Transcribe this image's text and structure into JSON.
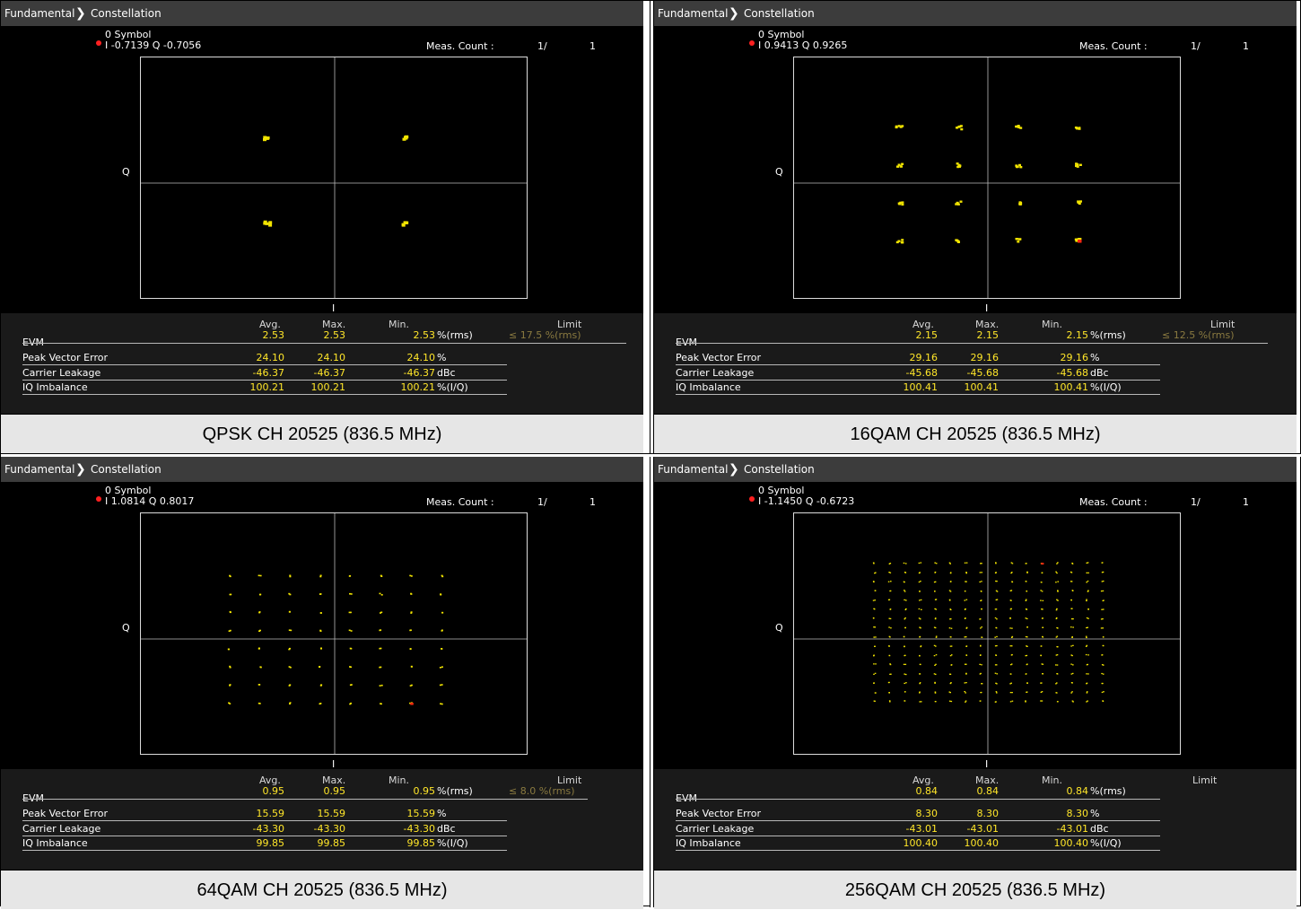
{
  "panels": [
    {
      "breadcrumb": [
        "Fundamental",
        "Constellation"
      ],
      "symbol_label": "0 Symbol",
      "iq_readout": "I -0.7139 Q -0.7056",
      "meas_label": "Meas. Count :",
      "meas_value": "1/",
      "meas_total": "1",
      "axis_q": "Q",
      "axis_i": "I",
      "columns": [
        "Avg.",
        "Max.",
        "Min.",
        "Limit"
      ],
      "rows": [
        {
          "name": "EVM",
          "avg": "2.53",
          "max": "2.53",
          "min": "2.53",
          "unit": "%(rms)",
          "limit": "≤ 17.5 %(rms)"
        },
        {
          "name": "Peak Vector Error",
          "avg": "24.10",
          "max": "24.10",
          "min": "24.10",
          "unit": "%",
          "limit": ""
        },
        {
          "name": "Carrier Leakage",
          "avg": "-46.37",
          "max": "-46.37",
          "min": "-46.37",
          "unit": "dBc",
          "limit": ""
        },
        {
          "name": "IQ Imbalance",
          "avg": "100.21",
          "max": "100.21",
          "min": "100.21",
          "unit": "%(I/Q)",
          "limit": ""
        }
      ],
      "caption": "QPSK CH 20525 (836.5 MHz)",
      "constellation_order": 2,
      "marker_point": [
        -1,
        -1
      ]
    },
    {
      "breadcrumb": [
        "Fundamental",
        "Constellation"
      ],
      "symbol_label": "0 Symbol",
      "iq_readout": "I 0.9413 Q 0.9265",
      "meas_label": "Meas. Count :",
      "meas_value": "1/",
      "meas_total": "1",
      "axis_q": "Q",
      "axis_i": "I",
      "columns": [
        "Avg.",
        "Max.",
        "Min.",
        "Limit"
      ],
      "rows": [
        {
          "name": "EVM",
          "avg": "2.15",
          "max": "2.15",
          "min": "2.15",
          "unit": "%(rms)",
          "limit": "≤ 12.5 %(rms)"
        },
        {
          "name": "Peak Vector Error",
          "avg": "29.16",
          "max": "29.16",
          "min": "29.16",
          "unit": "%",
          "limit": ""
        },
        {
          "name": "Carrier Leakage",
          "avg": "-45.68",
          "max": "-45.68",
          "min": "-45.68",
          "unit": "dBc",
          "limit": ""
        },
        {
          "name": "IQ Imbalance",
          "avg": "100.41",
          "max": "100.41",
          "min": "100.41",
          "unit": "%(I/Q)",
          "limit": ""
        }
      ],
      "caption": "16QAM CH 20525 (836.5 MHz)",
      "constellation_order": 4,
      "marker_point": [
        3,
        3
      ]
    },
    {
      "breadcrumb": [
        "Fundamental",
        "Constellation"
      ],
      "symbol_label": "0 Symbol",
      "iq_readout": "I 1.0814 Q 0.8017",
      "meas_label": "Meas. Count :",
      "meas_value": "1/",
      "meas_total": "1",
      "axis_q": "Q",
      "axis_i": "I",
      "columns": [
        "Avg.",
        "Max.",
        "Min.",
        "Limit"
      ],
      "rows": [
        {
          "name": "EVM",
          "avg": "0.95",
          "max": "0.95",
          "min": "0.95",
          "unit": "%(rms)",
          "limit": "≤ 8.0 %(rms)"
        },
        {
          "name": "Peak Vector Error",
          "avg": "15.59",
          "max": "15.59",
          "min": "15.59",
          "unit": "%",
          "limit": ""
        },
        {
          "name": "Carrier Leakage",
          "avg": "-43.30",
          "max": "-43.30",
          "min": "-43.30",
          "unit": "dBc",
          "limit": ""
        },
        {
          "name": "IQ Imbalance",
          "avg": "99.85",
          "max": "99.85",
          "min": "99.85",
          "unit": "%(I/Q)",
          "limit": ""
        }
      ],
      "caption": "64QAM CH 20525 (836.5 MHz)",
      "constellation_order": 8,
      "marker_point": [
        7,
        6
      ]
    },
    {
      "breadcrumb": [
        "Fundamental",
        "Constellation"
      ],
      "symbol_label": "0 Symbol",
      "iq_readout": "I -1.1450 Q -0.6723",
      "meas_label": "Meas. Count :",
      "meas_value": "1/",
      "meas_total": "1",
      "axis_q": "Q",
      "axis_i": "I",
      "columns": [
        "Avg.",
        "Max.",
        "Min.",
        "Limit"
      ],
      "rows": [
        {
          "name": "EVM",
          "avg": "0.84",
          "max": "0.84",
          "min": "0.84",
          "unit": "%(rms)",
          "limit": ""
        },
        {
          "name": "Peak Vector Error",
          "avg": "8.30",
          "max": "8.30",
          "min": "8.30",
          "unit": "%",
          "limit": ""
        },
        {
          "name": "Carrier Leakage",
          "avg": "-43.01",
          "max": "-43.01",
          "min": "-43.01",
          "unit": "dBc",
          "limit": ""
        },
        {
          "name": "IQ Imbalance",
          "avg": "100.40",
          "max": "100.40",
          "min": "100.40",
          "unit": "%(I/Q)",
          "limit": ""
        }
      ],
      "caption": "256QAM CH 20525 (836.5 MHz)",
      "constellation_order": 16,
      "marker_point": [
        0,
        11
      ]
    }
  ]
}
